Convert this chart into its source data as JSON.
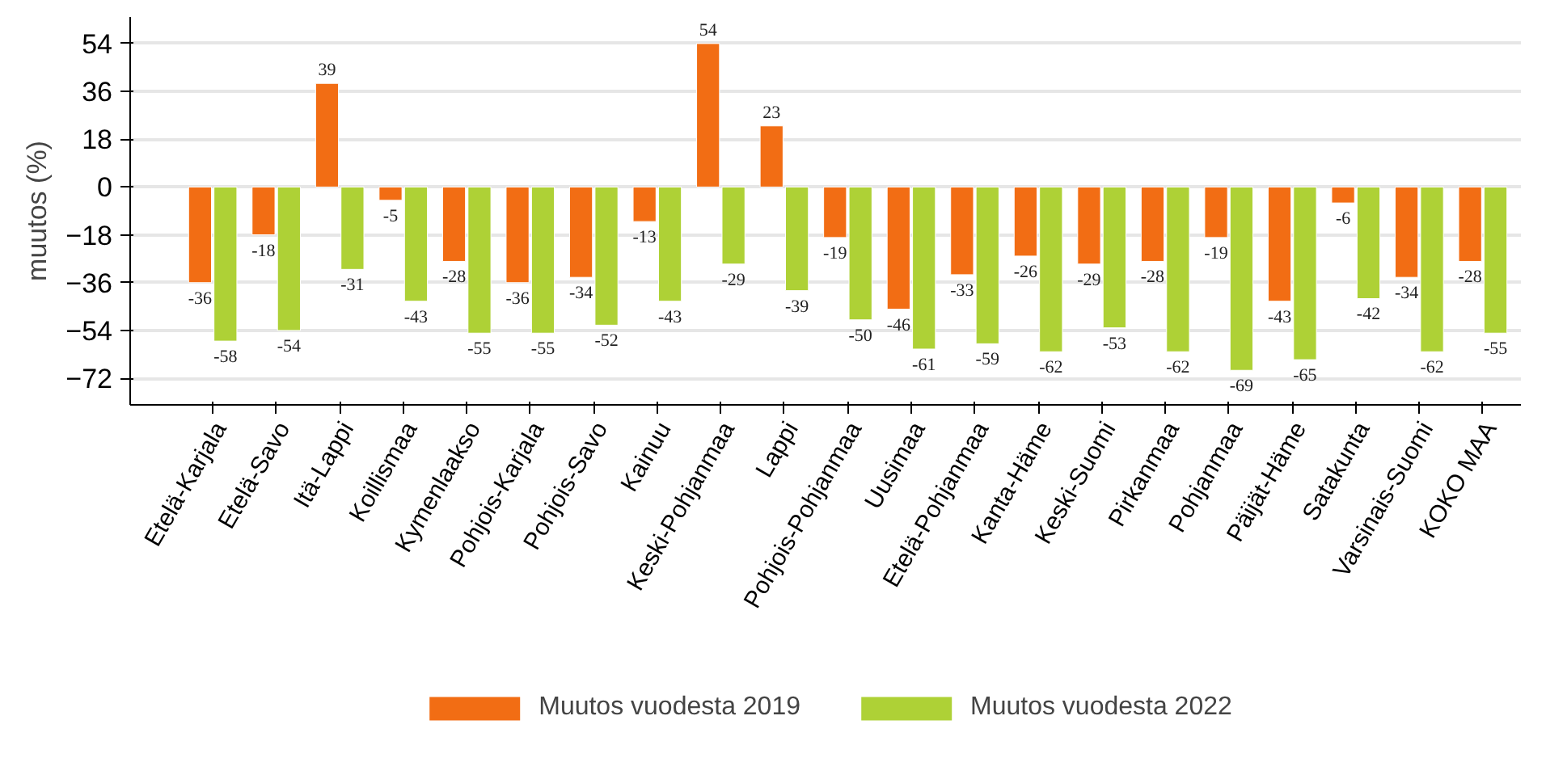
{
  "chart_data": {
    "type": "bar",
    "ylabel": "muutos (%)",
    "categories": [
      "Etelä-Karjala",
      "Etelä-Savo",
      "Itä-Lappi",
      "Koillismaa",
      "Kymenlaakso",
      "Pohjois-Karjala",
      "Pohjois-Savo",
      "Kainuu",
      "Keski-Pohjanmaa",
      "Lappi",
      "Pohjois-Pohjanmaa",
      "Uusimaa",
      "Etelä-Pohjanmaa",
      "Kanta-Häme",
      "Keski-Suomi",
      "Pirkanmaa",
      "Pohjanmaa",
      "Päijät-Häme",
      "Satakunta",
      "Varsinais-Suomi",
      "KOKO MAA"
    ],
    "series": [
      {
        "name": "Muutos vuodesta 2019",
        "color": "#f26d14",
        "values": [
          -36,
          -18,
          39,
          -5,
          -28,
          -36,
          -34,
          -13,
          54,
          23,
          -19,
          -46,
          -33,
          -26,
          -29,
          -28,
          -19,
          -43,
          -6,
          -34,
          -28
        ]
      },
      {
        "name": "Muutos vuodesta 2022",
        "color": "#aed136",
        "values": [
          -58,
          -54,
          -31,
          -43,
          -55,
          -55,
          -52,
          -43,
          -29,
          -39,
          -50,
          -61,
          -59,
          -62,
          -53,
          -62,
          -69,
          -65,
          -42,
          -62,
          -55
        ]
      }
    ],
    "ylim": [
      -82,
      64
    ],
    "yticks": [
      -72,
      -54,
      -36,
      -18,
      0,
      18,
      36,
      54
    ],
    "data_labels": true,
    "grid": "y",
    "legend": "bottom"
  }
}
